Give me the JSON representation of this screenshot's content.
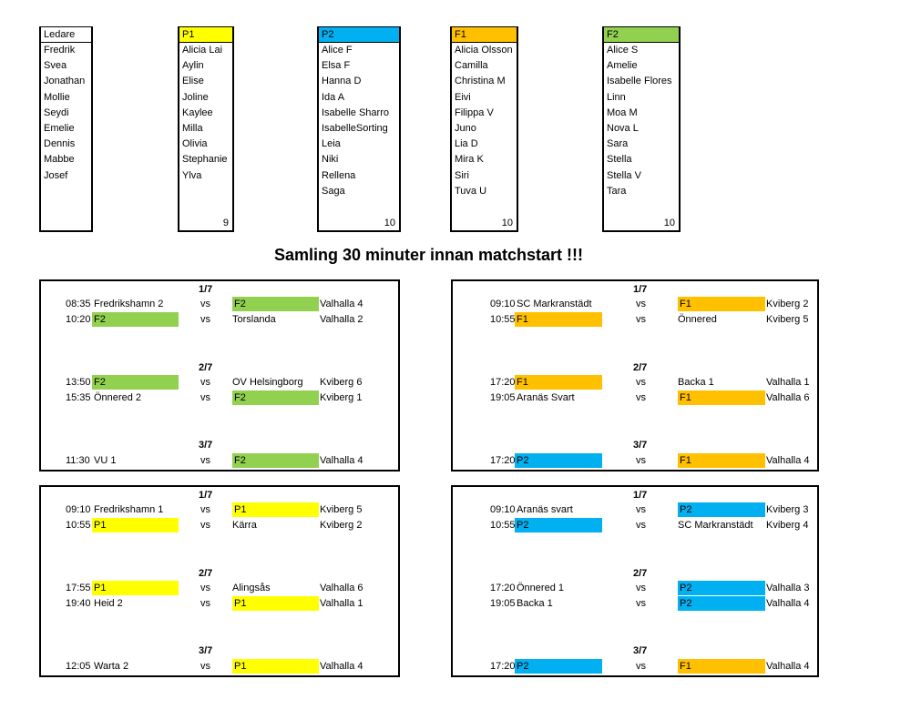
{
  "colors": {
    "P1": "#ffff00",
    "P2": "#00b0f0",
    "F1": "#ffc000",
    "F2": "#92d050"
  },
  "rosters": [
    {
      "header": "Ledare",
      "color": "",
      "names": [
        "Fredrik",
        "Svea",
        "Jonathan",
        "Mollie",
        "Seydi",
        "Emelie",
        "Dennis",
        "Mabbe",
        "Josef"
      ],
      "count": ""
    },
    {
      "header": "P1",
      "color": "P1",
      "names": [
        "Alicia Lai",
        "Aylin",
        "Elise",
        "Joline",
        "Kaylee",
        "Milla",
        "Olivia",
        "Stephanie",
        "Ylva"
      ],
      "count": "9"
    },
    {
      "header": "P2",
      "color": "P2",
      "names": [
        "Alice F",
        "Elsa F",
        "Hanna D",
        "Ida A",
        "Isabelle Sharro",
        "IsabelleSorting",
        "Leia",
        "Niki",
        "Rellena",
        "Saga"
      ],
      "count": "10"
    },
    {
      "header": "F1",
      "color": "F1",
      "names": [
        "Alicia Olsson",
        "Camilla",
        "Christina M",
        "Eivi",
        "Filippa V",
        "Juno",
        "Lia D",
        "Mira K",
        "Siri",
        "Tuva U"
      ],
      "count": "10"
    },
    {
      "header": "F2",
      "color": "F2",
      "names": [
        "Alice S",
        "Amelie",
        "Isabelle Flores",
        "Linn",
        "Moa M",
        "Nova L",
        "Sara",
        "Stella",
        "Stella V",
        "Tara"
      ],
      "count": "10"
    }
  ],
  "title": "Samling 30 minuter innan matchstart !!!",
  "schedules": [
    {
      "days": [
        {
          "label": "1/7",
          "matches": [
            {
              "time": "08:35",
              "home": "Fredrikshamn 2",
              "home_color": "",
              "vs": "vs",
              "away": "F2",
              "away_color": "F2",
              "venue": "Valhalla 4"
            },
            {
              "time": "10:20",
              "home": "F2",
              "home_color": "F2",
              "vs": "vs",
              "away": "Torslanda",
              "away_color": "",
              "venue": "Valhalla 2"
            }
          ]
        },
        {
          "label": "2/7",
          "matches": [
            {
              "time": "13:50",
              "home": "F2",
              "home_color": "F2",
              "vs": "vs",
              "away": "OV Helsingborg",
              "away_color": "",
              "venue": "Kviberg 6"
            },
            {
              "time": "15:35",
              "home": "Önnered 2",
              "home_color": "",
              "vs": "vs",
              "away": "F2",
              "away_color": "F2",
              "venue": "Kviberg 1"
            }
          ]
        },
        {
          "label": "3/7",
          "matches": [
            {
              "time": "11:30",
              "home": "VU 1",
              "home_color": "",
              "vs": "vs",
              "away": "F2",
              "away_color": "F2",
              "venue": "Valhalla 4"
            }
          ]
        }
      ]
    },
    {
      "days": [
        {
          "label": "1/7",
          "matches": [
            {
              "time": "09:10",
              "home": "SC Markranstädt",
              "home_color": "",
              "vs": "vs",
              "away": "F1",
              "away_color": "F1",
              "venue": "Kviberg 2"
            },
            {
              "time": "10:55",
              "home": "F1",
              "home_color": "F1",
              "vs": "vs",
              "away": "Önnered",
              "away_color": "",
              "venue": "Kviberg 5"
            }
          ]
        },
        {
          "label": "2/7",
          "matches": [
            {
              "time": "17:20",
              "home": "F1",
              "home_color": "F1",
              "vs": "vs",
              "away": "Backa 1",
              "away_color": "",
              "venue": "Valhalla 1"
            },
            {
              "time": "19:05",
              "home": "Aranäs Svart",
              "home_color": "",
              "vs": "vs",
              "away": "F1",
              "away_color": "F1",
              "venue": "Valhalla 6"
            }
          ]
        },
        {
          "label": "3/7",
          "matches": [
            {
              "time": "17:20",
              "home": "P2",
              "home_color": "P2",
              "vs": "vs",
              "away": "F1",
              "away_color": "F1",
              "venue": "Valhalla 4"
            }
          ]
        }
      ]
    },
    {
      "days": [
        {
          "label": "1/7",
          "matches": [
            {
              "time": "09:10",
              "home": "Fredrikshamn 1",
              "home_color": "",
              "vs": "vs",
              "away": "P1",
              "away_color": "P1",
              "venue": "Kviberg 5"
            },
            {
              "time": "10:55",
              "home": "P1",
              "home_color": "P1",
              "vs": "vs",
              "away": "Kärra",
              "away_color": "",
              "venue": "Kviberg 2"
            }
          ]
        },
        {
          "label": "2/7",
          "matches": [
            {
              "time": "17:55",
              "home": "P1",
              "home_color": "P1",
              "vs": "vs",
              "away": "Alingsås",
              "away_color": "",
              "venue": "Valhalla 6"
            },
            {
              "time": "19:40",
              "home": "Heid 2",
              "home_color": "",
              "vs": "vs",
              "away": "P1",
              "away_color": "P1",
              "venue": "Valhalla 1"
            }
          ]
        },
        {
          "label": "3/7",
          "matches": [
            {
              "time": "12:05",
              "home": "Warta 2",
              "home_color": "",
              "vs": "vs",
              "away": "P1",
              "away_color": "P1",
              "venue": "Valhalla 4"
            }
          ]
        }
      ]
    },
    {
      "days": [
        {
          "label": "1/7",
          "matches": [
            {
              "time": "09:10",
              "home": "Aranäs svart",
              "home_color": "",
              "vs": "vs",
              "away": "P2",
              "away_color": "P2",
              "venue": "Kviberg 3"
            },
            {
              "time": "10:55",
              "home": "P2",
              "home_color": "P2",
              "vs": "vs",
              "away": "SC Markranstädt",
              "away_color": "",
              "venue": "Kviberg 4"
            }
          ]
        },
        {
          "label": "2/7",
          "matches": [
            {
              "time": "17:20",
              "home": "Önnered 1",
              "home_color": "",
              "vs": "vs",
              "away": "P2",
              "away_color": "P2",
              "venue": "Valhalla 3"
            },
            {
              "time": "19:05",
              "home": "Backa 1",
              "home_color": "",
              "vs": "vs",
              "away": "P2",
              "away_color": "P2",
              "venue": "Valhalla 4"
            }
          ]
        },
        {
          "label": "3/7",
          "matches": [
            {
              "time": "17:20",
              "home": "P2",
              "home_color": "P2",
              "vs": "vs",
              "away": "F1",
              "away_color": "F1",
              "venue": "Valhalla 4"
            }
          ]
        }
      ]
    }
  ]
}
